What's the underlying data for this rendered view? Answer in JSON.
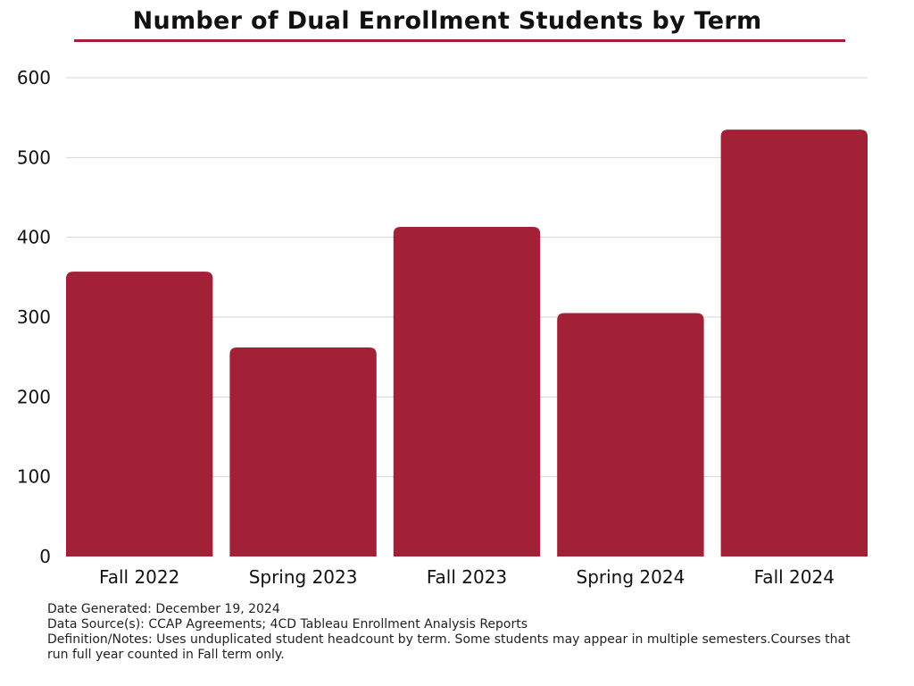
{
  "chart_data": {
    "type": "bar",
    "title": "Number of Dual Enrollment Students by Term",
    "categories": [
      "Fall 2022",
      "Spring 2023",
      "Fall 2023",
      "Spring 2024",
      "Fall 2024"
    ],
    "values": [
      357,
      262,
      413,
      305,
      535
    ],
    "xlabel": "",
    "ylabel": "",
    "ylim": [
      0,
      600
    ],
    "yticks": [
      0,
      100,
      200,
      300,
      400,
      500,
      600
    ],
    "grid": true,
    "bar_color": "#a32136",
    "legend": "none"
  },
  "footer": {
    "date_label": "Date Generated:",
    "date_value": "December 19, 2024",
    "source_label": "Data Source(s):",
    "source_value": "CCAP Agreements; 4CD Tableau Enrollment Analysis Reports",
    "notes_label": "Definition/Notes:",
    "notes_value": "Uses unduplicated student headcount by term. Some students may appear in multiple semesters.Courses that run full year counted in Fall term only."
  },
  "colors": {
    "accent": "#a32136",
    "grid": "#d4d4d4"
  }
}
